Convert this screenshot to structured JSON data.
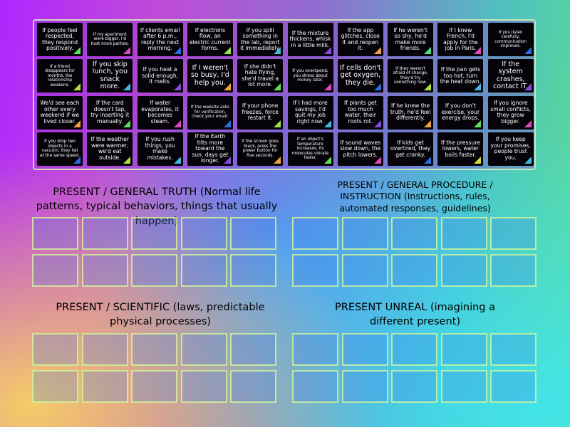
{
  "cards": [
    {
      "text": "If people feel respected, they respond positively.",
      "size": "",
      "color": "#5fe05a"
    },
    {
      "text": "If my apartment were bigger, I'd host more parties.",
      "size": "small",
      "color": "#e048c0"
    },
    {
      "text": "If clients email after 6 p.m., reply the next morning.",
      "size": "",
      "color": "#2a6de0"
    },
    {
      "text": "If electrons flow, an electric current forms.",
      "size": "",
      "color": "#9be04a"
    },
    {
      "text": "If you spill something in the lab, report it immediately.",
      "size": "",
      "color": "#40b8e0"
    },
    {
      "text": "If the mixture thickens, whisk in a little milk.",
      "size": "",
      "color": "#8a4ae0"
    },
    {
      "text": "If the app glitches, close it and reopen it.",
      "size": "",
      "color": "#f0a040"
    },
    {
      "text": "If he weren't so shy, he'd make more friends.",
      "size": "",
      "color": "#50e080"
    },
    {
      "text": "If I knew French, I'd apply for the job in Paris.",
      "size": "",
      "color": "#e048c0"
    },
    {
      "text": "If you listen carefully, communication improves.",
      "size": "small",
      "color": "#2a6de0"
    },
    {
      "text": "If a friend disappears for months, the relationship weakens.",
      "size": "small",
      "color": "#b0e040"
    },
    {
      "text": "If you skip lunch, you snack more.",
      "size": "big",
      "color": "#40b8e0"
    },
    {
      "text": "If you heat a solid enough, it melts.",
      "size": "",
      "color": "#8a4ae0"
    },
    {
      "text": "If I weren't so busy, I'd help you.",
      "size": "big",
      "color": "#f0a040"
    },
    {
      "text": "If she didn't hate flying, she'd travel a lot more.",
      "size": "",
      "color": "#5fe05a"
    },
    {
      "text": "If you overspend, you stress about money later.",
      "size": "small",
      "color": "#e048c0"
    },
    {
      "text": "If cells don't get oxygen, they die.",
      "size": "big",
      "color": "#2a6de0"
    },
    {
      "text": "If they weren't afraid of change, they'd try something new.",
      "size": "small",
      "color": "#b0e040"
    },
    {
      "text": "If the pan gets too hot, turn the heat down.",
      "size": "",
      "color": "#40b8e0"
    },
    {
      "text": "If the system crashes, contact IT.",
      "size": "big",
      "color": "#8a4ae0"
    },
    {
      "text": "We'd see each other every weekend if we lived closer.",
      "size": "",
      "color": "#f0a040"
    },
    {
      "text": "If the card doesn't tap, try inserting it manually.",
      "size": "",
      "color": "#5fe05a"
    },
    {
      "text": "If water evaporates, it becomes steam.",
      "size": "",
      "color": "#e048c0"
    },
    {
      "text": "If the website asks for verification, check your email.",
      "size": "small",
      "color": "#2a6de0"
    },
    {
      "text": "If your phone freezes, force restart it.",
      "size": "",
      "color": "#9be04a"
    },
    {
      "text": "If I had more savings, I'd quit my job right now.",
      "size": "",
      "color": "#40b8e0"
    },
    {
      "text": "If plants get too much water, their roots rot.",
      "size": "",
      "color": "#8a4ae0"
    },
    {
      "text": "If he knew the truth, he'd feel differently.",
      "size": "",
      "color": "#f0a040"
    },
    {
      "text": "If you don't exercise, your energy drops.",
      "size": "",
      "color": "#5fe05a"
    },
    {
      "text": "If you ignore small conflicts, they grow bigger.",
      "size": "",
      "color": "#e048c0"
    },
    {
      "text": "If you drop two objects in a vacuum, they fall at the same speed.",
      "size": "small",
      "color": "#2a6de0"
    },
    {
      "text": "If the weather were warmer, we'd eat outside.",
      "size": "",
      "color": "#b0e040"
    },
    {
      "text": "If you rush things, you make mistakes.",
      "size": "",
      "color": "#40b8e0"
    },
    {
      "text": "If the Earth tilts more toward the sun, days get longer.",
      "size": "",
      "color": "#8a4ae0"
    },
    {
      "text": "If the screen goes black, press the power button for five seconds.",
      "size": "small",
      "color": "#f0a040"
    },
    {
      "text": "If an object's temperature increases, its molecules vibrate faster.",
      "size": "small",
      "color": "#5fe05a"
    },
    {
      "text": "If sound waves slow down, the pitch lowers.",
      "size": "",
      "color": "#e048c0"
    },
    {
      "text": "If kids get overtired, they get cranky.",
      "size": "",
      "color": "#2a6de0"
    },
    {
      "text": "If the pressure lowers, water boils faster.",
      "size": "",
      "color": "#d0e040"
    },
    {
      "text": "If you keep your promises, people trust you.",
      "size": "",
      "color": "#40b8e0"
    }
  ],
  "groups": [
    {
      "title": "PRESENT / GENERAL TRUTH (Normal life patterns, typical behaviors, things that usually happen)"
    },
    {
      "title": "PRESENT / GENERAL PROCEDURE / INSTRUCTION (Instructions, rules, automated responses, guidelines)"
    },
    {
      "title": "PRESENT / SCIENTIFIC (laws, predictable physical processes)"
    },
    {
      "title": "PRESENT UNREAL (imagining a different present)"
    }
  ]
}
